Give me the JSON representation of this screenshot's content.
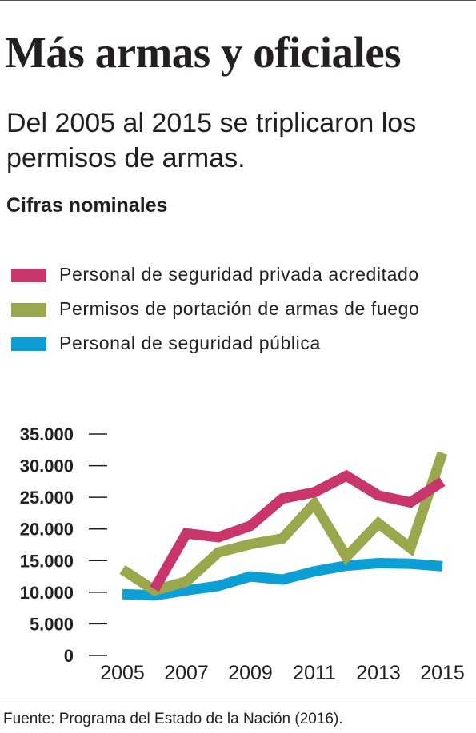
{
  "header": {
    "title": "Más armas y oficiales",
    "subtitle": "Del 2005 al 2015 se triplicaron los permisos de armas.",
    "section_label": "Cifras nominales"
  },
  "legend": {
    "items": [
      {
        "label": "Personal de seguridad privada acreditado",
        "color": "#c8366b",
        "icon": "magenta-swatch"
      },
      {
        "label": "Permisos de portación de armas de fuego",
        "color": "#9aa74d",
        "icon": "olive-swatch"
      },
      {
        "label": "Personal de seguridad pública",
        "color": "#0d9fd3",
        "icon": "blue-swatch"
      }
    ]
  },
  "chart_data": {
    "type": "line",
    "x": [
      2005,
      2006,
      2007,
      2008,
      2009,
      2010,
      2011,
      2012,
      2013,
      2014,
      2015
    ],
    "x_tick_labels": [
      "2005",
      "2007",
      "2009",
      "2011",
      "2013",
      "2015"
    ],
    "y_tick_labels": [
      "35.000",
      "30.000",
      "25.000",
      "20.000",
      "15.000",
      "10.000",
      "5.000",
      "0"
    ],
    "ylim": [
      0,
      35000
    ],
    "grid": false,
    "legend_position": "top",
    "series": [
      {
        "name": "Personal de seguridad privada acreditado",
        "color": "#c8366b",
        "values": [
          null,
          10500,
          19300,
          18700,
          20500,
          24800,
          25800,
          28400,
          25300,
          24200,
          27500
        ]
      },
      {
        "name": "Permisos de portación de armas de fuego",
        "color": "#9aa74d",
        "values": [
          13600,
          10300,
          11700,
          16300,
          17600,
          18500,
          24000,
          15600,
          20900,
          17000,
          32000
        ]
      },
      {
        "name": "Personal de seguridad pública",
        "color": "#0d9fd3",
        "values": [
          9700,
          9500,
          10300,
          11000,
          12500,
          12000,
          13300,
          14200,
          14600,
          14500,
          14100
        ]
      }
    ]
  },
  "footer": {
    "source": "Fuente: Programa del Estado de la Nación (2016)."
  }
}
